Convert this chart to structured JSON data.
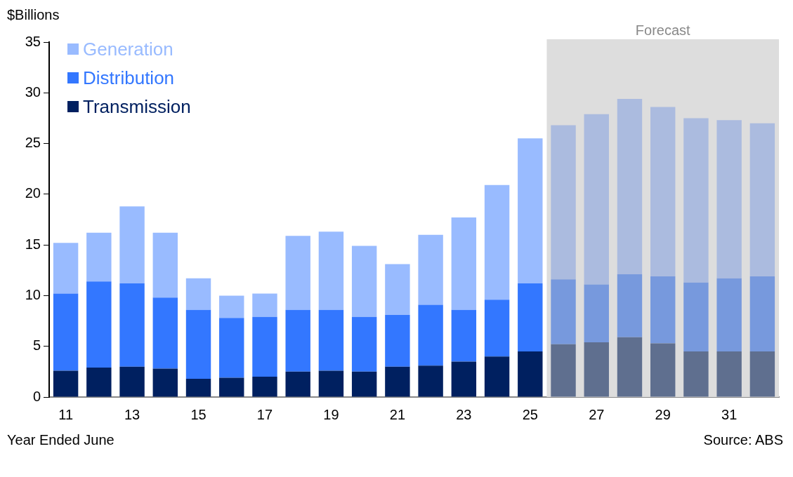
{
  "chart_data": {
    "type": "bar",
    "stacked": true,
    "ylabel": "$Billions",
    "xlabel": "Year Ended June",
    "annotations": [
      "Source: ABS",
      "Forecast"
    ],
    "categories": [
      "11",
      null,
      "13",
      null,
      "15",
      null,
      "17",
      null,
      "19",
      null,
      "21",
      null,
      "23",
      null,
      "25",
      null,
      "27",
      null,
      "29",
      null,
      "31",
      null
    ],
    "series": [
      {
        "name": "Transmission",
        "color": "#002060",
        "colors": [
          "#002060",
          "#002060",
          "#002060",
          "#002060",
          "#002060",
          "#002060",
          "#002060",
          "#002060",
          "#002060",
          "#002060",
          "#002060",
          "#002060",
          "#002060",
          "#002060",
          "#002060",
          "#5f6f8f",
          "#5f6f8f",
          "#5f6f8f",
          "#5f6f8f",
          "#5f6f8f",
          "#5f6f8f",
          "#5f6f8f"
        ],
        "values": [
          2.6,
          2.9,
          3.0,
          2.8,
          1.8,
          1.9,
          2.0,
          2.5,
          2.6,
          2.5,
          3.0,
          3.1,
          3.5,
          4.0,
          4.5,
          5.2,
          5.4,
          5.9,
          5.3,
          4.5,
          4.5,
          4.5
        ]
      },
      {
        "name": "Distribution",
        "color": "#3377ff",
        "colors": [
          "#3377ff",
          "#3377ff",
          "#3377ff",
          "#3377ff",
          "#3377ff",
          "#3377ff",
          "#3377ff",
          "#3377ff",
          "#3377ff",
          "#3377ff",
          "#3377ff",
          "#3377ff",
          "#3377ff",
          "#3377ff",
          "#3377ff",
          "#7799dd",
          "#7799dd",
          "#7799dd",
          "#7799dd",
          "#7799dd",
          "#7799dd",
          "#7799dd"
        ],
        "values": [
          7.6,
          8.5,
          8.2,
          7.0,
          6.8,
          5.9,
          5.9,
          6.1,
          6.0,
          5.4,
          5.1,
          6.0,
          5.1,
          5.6,
          6.7,
          6.4,
          5.7,
          6.2,
          6.6,
          6.8,
          7.2,
          7.4
        ]
      },
      {
        "name": "Generation",
        "color": "#99bbff",
        "colors": [
          "#99bbff",
          "#99bbff",
          "#99bbff",
          "#99bbff",
          "#99bbff",
          "#99bbff",
          "#99bbff",
          "#99bbff",
          "#99bbff",
          "#99bbff",
          "#99bbff",
          "#99bbff",
          "#99bbff",
          "#99bbff",
          "#99bbff",
          "#abbbdf",
          "#abbbdf",
          "#abbbdf",
          "#abbbdf",
          "#abbbdf",
          "#abbbdf",
          "#abbbdf"
        ],
        "values": [
          5.0,
          4.8,
          7.6,
          6.4,
          3.1,
          2.2,
          2.3,
          7.3,
          7.7,
          7.0,
          5.0,
          6.9,
          9.1,
          11.3,
          14.3,
          15.2,
          16.8,
          17.3,
          16.7,
          16.2,
          15.6,
          15.1
        ]
      }
    ],
    "ylim": [
      0,
      35
    ],
    "yticks": [
      0,
      5,
      10,
      15,
      20,
      25,
      30,
      35
    ],
    "grid": false,
    "legend": "top left"
  }
}
